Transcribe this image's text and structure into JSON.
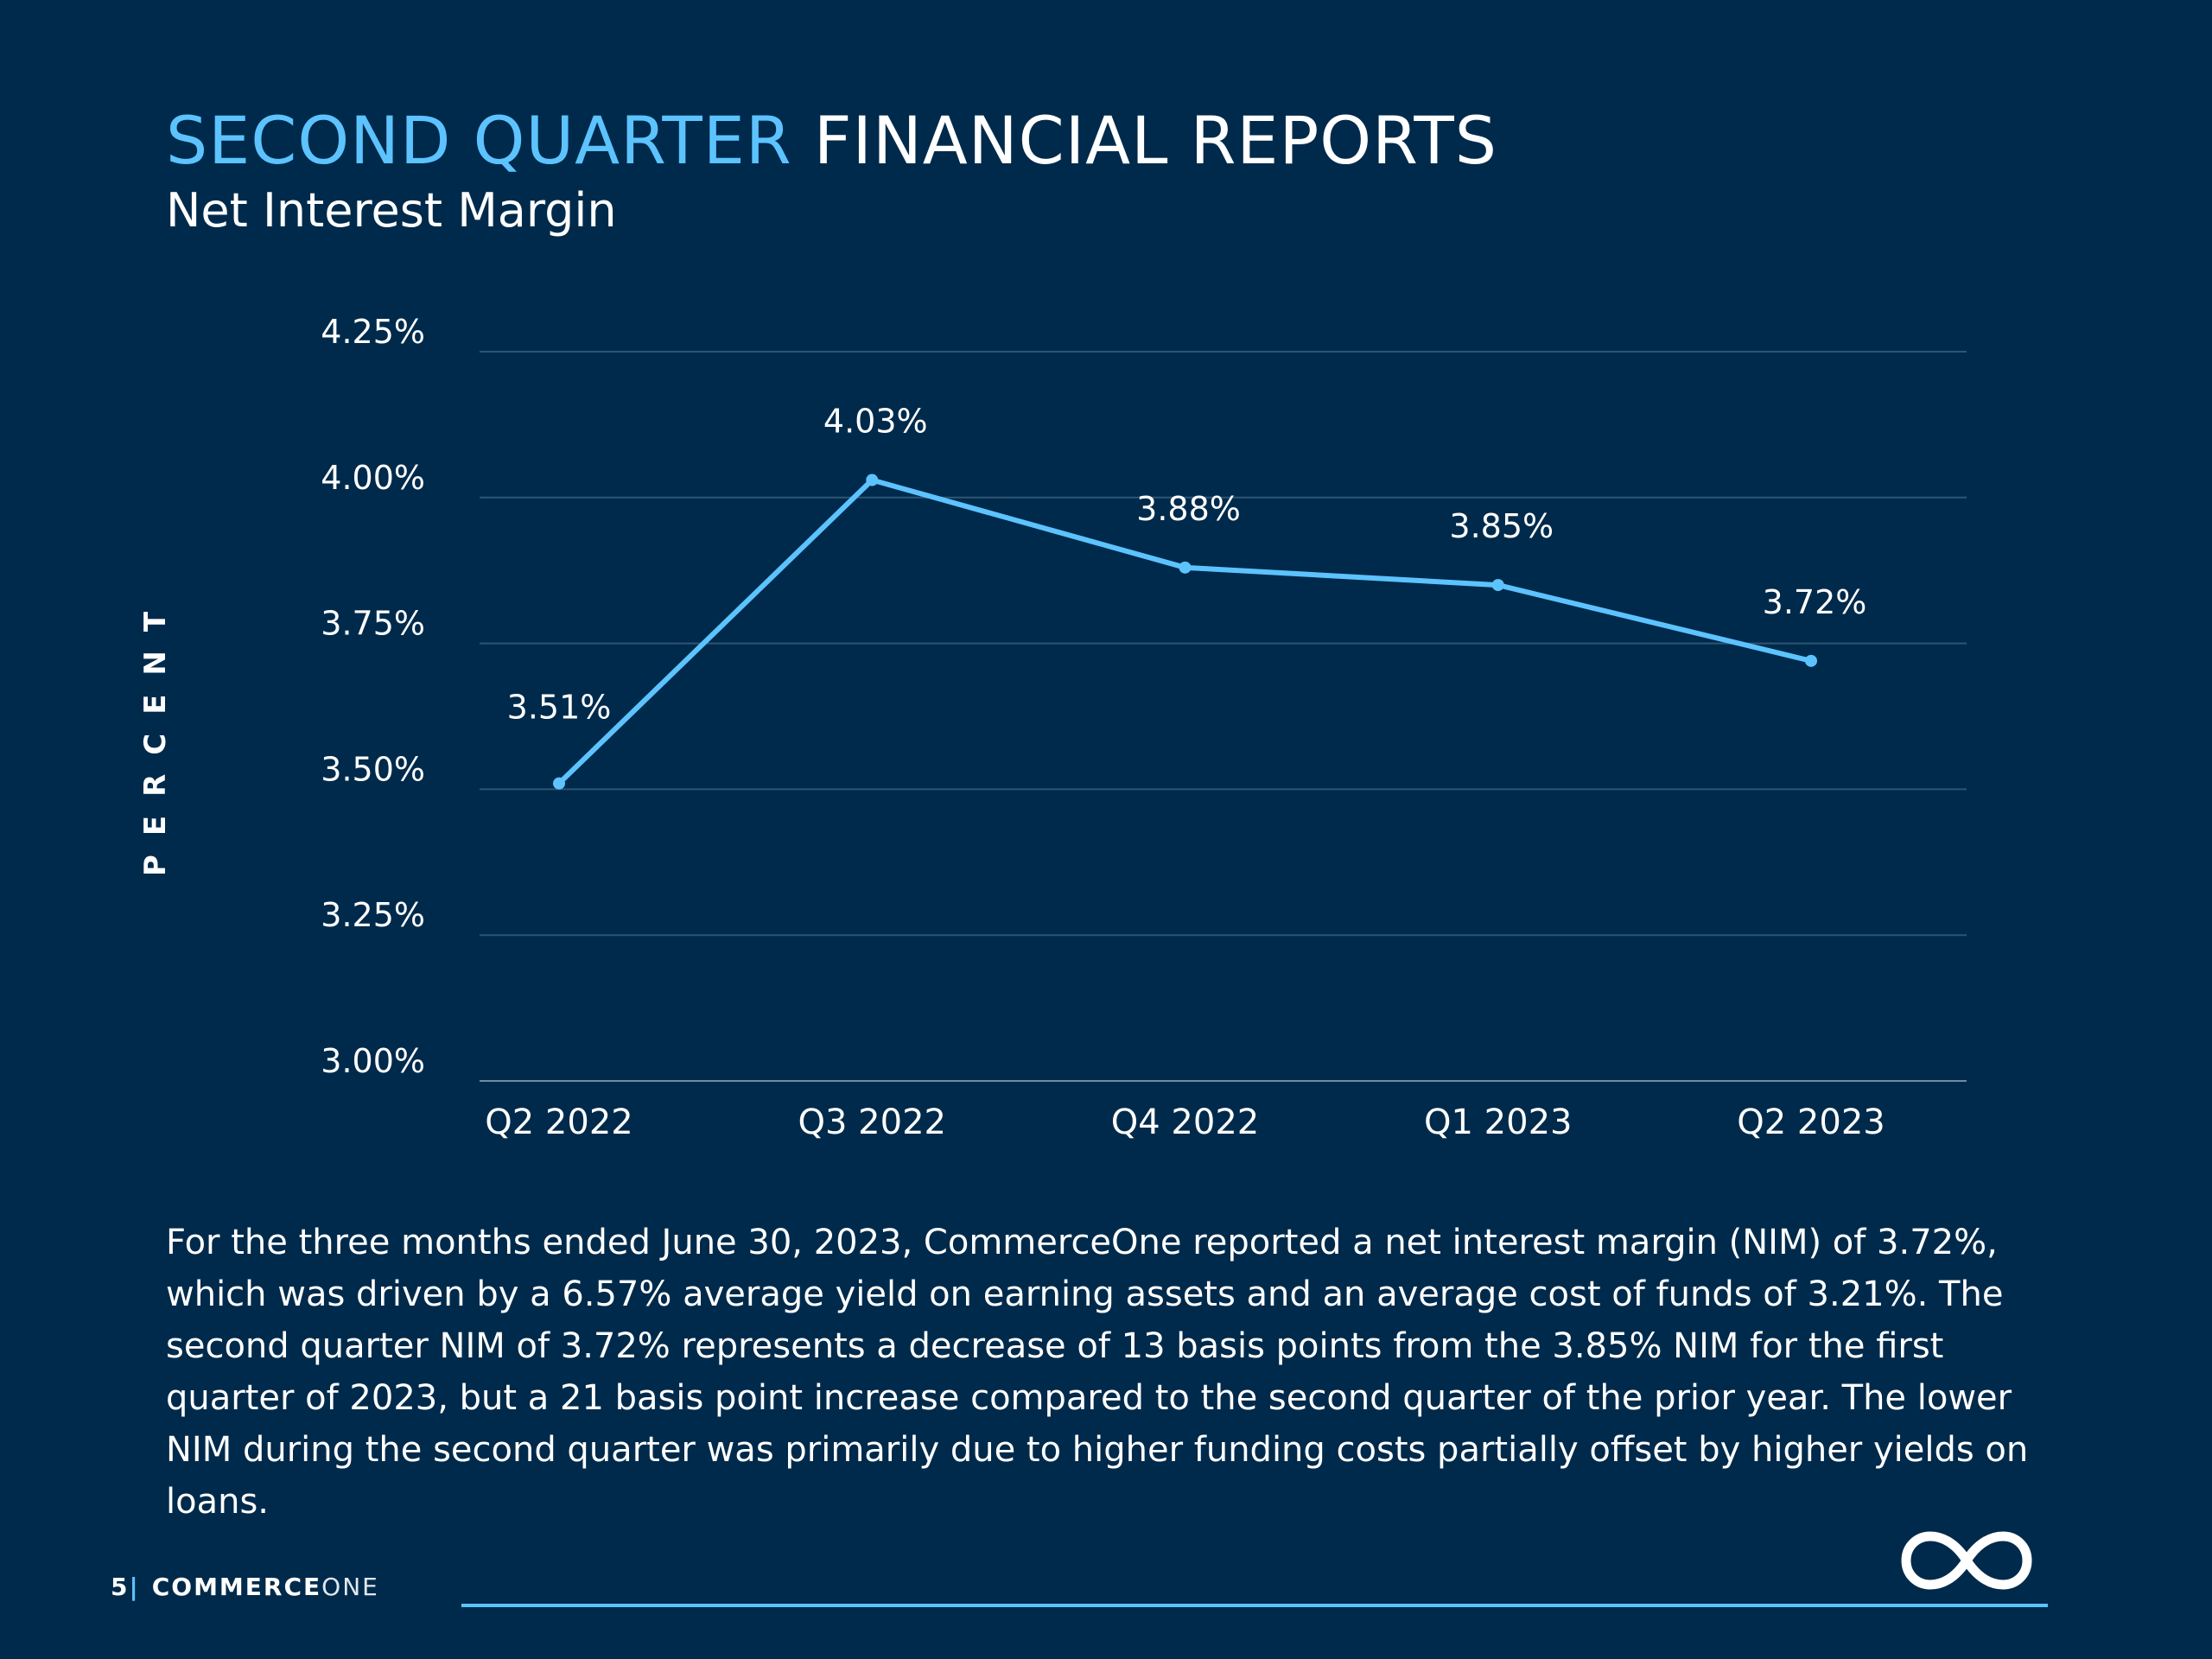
{
  "header": {
    "title_accent": "SECOND QUARTER",
    "title_rest": "FINANCIAL REPORTS",
    "subtitle": "Net Interest Margin"
  },
  "chart_data": {
    "type": "line",
    "categories": [
      "Q2 2022",
      "Q3 2022",
      "Q4 2022",
      "Q1 2023",
      "Q2 2023"
    ],
    "series": [
      {
        "values": [
          3.51,
          4.03,
          3.88,
          3.85,
          3.72
        ],
        "labels": [
          "3.51%",
          "4.03%",
          "3.88%",
          "3.85%",
          "3.72%"
        ]
      }
    ],
    "ylabel": "PERCENT",
    "yticks": [
      3.0,
      3.25,
      3.5,
      3.75,
      4.0,
      4.25
    ],
    "ytick_labels": [
      "3.00%",
      "3.25%",
      "3.50%",
      "3.75%",
      "4.00%",
      "4.25%"
    ],
    "ylim": [
      3.0,
      4.25
    ],
    "grid": true,
    "line_color": "#5cc3ff"
  },
  "body": {
    "text": "For the three months ended June 30, 2023, CommerceOne reported a net interest margin (NIM) of 3.72%, which was driven by a 6.57% average yield on earning assets and an average cost of funds of 3.21%. The second quarter NIM of 3.72% represents a decrease of 13 basis points from the 3.85% NIM for the first quarter of 2023, but a 21 basis point increase compared to the second quarter of the prior year. The lower NIM during the second quarter was primarily due to higher funding costs partially offset by higher yields on loans."
  },
  "footer": {
    "page_number": "5",
    "separator": "|",
    "brand_bold": "COMMERCE",
    "brand_light": "ONE",
    "logo_icon": "infinity-logo-icon"
  },
  "colors": {
    "background": "#002a4b",
    "accent": "#5cc3ff",
    "text": "#ffffff"
  }
}
